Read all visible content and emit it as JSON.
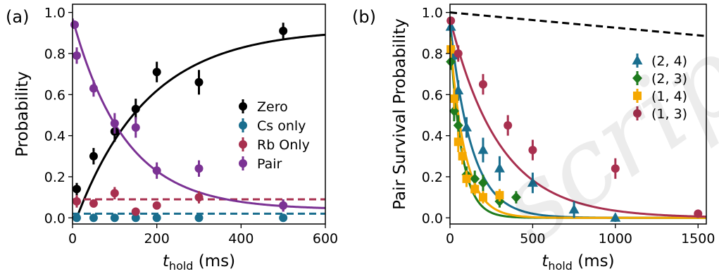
{
  "chart_data": [
    {
      "type": "scatter",
      "panel_label": "(a)",
      "xlabel_main": "t",
      "xlabel_sub": "hold",
      "xlabel_unit": " (ms)",
      "ylabel": "Probability",
      "xlim": [
        0,
        600
      ],
      "ylim": [
        -0.03,
        1.04
      ],
      "xticks": [
        0,
        200,
        400,
        600
      ],
      "yticks": [
        0.0,
        0.2,
        0.4,
        0.6,
        0.8,
        1.0
      ],
      "ytick_labels": [
        "0.0",
        "0.2",
        "0.4",
        "0.6",
        "0.8",
        "1.0"
      ],
      "legend_placement": "center-right",
      "series": [
        {
          "name": "Zero",
          "color": "#000000",
          "marker": "circle",
          "x": [
            10,
            50,
            100,
            150,
            200,
            300,
            500
          ],
          "y": [
            0.14,
            0.3,
            0.42,
            0.53,
            0.71,
            0.66,
            0.91
          ],
          "err": [
            0.03,
            0.04,
            0.05,
            0.05,
            0.05,
            0.06,
            0.04
          ],
          "fit": {
            "kind": "rise",
            "a": 0.92,
            "tau": 170,
            "x0": 10
          },
          "fit_style": "solid"
        },
        {
          "name": "Cs only",
          "color": "#1a6e8e",
          "marker": "circle",
          "x": [
            10,
            50,
            100,
            150,
            200,
            300,
            500
          ],
          "y": [
            0.0,
            0.0,
            0.0,
            0.0,
            0.0,
            0.0,
            0.0
          ],
          "err": [
            0.01,
            0.01,
            0.01,
            0.01,
            0.01,
            0.01,
            0.01
          ],
          "fit": {
            "kind": "const",
            "c": 0.02
          },
          "fit_style": "dashed"
        },
        {
          "name": "Rb Only",
          "color": "#a8304f",
          "marker": "circle",
          "x": [
            10,
            50,
            100,
            150,
            200,
            300,
            500
          ],
          "y": [
            0.08,
            0.07,
            0.12,
            0.03,
            0.06,
            0.1,
            0.06
          ],
          "err": [
            0.03,
            0.02,
            0.03,
            0.02,
            0.02,
            0.03,
            0.03
          ],
          "fit": {
            "kind": "const",
            "c": 0.09
          },
          "fit_style": "dashed"
        },
        {
          "name": "Pair",
          "color": "#7b3294",
          "marker": "circle",
          "x": [
            5,
            10,
            50,
            100,
            150,
            200,
            300,
            500
          ],
          "y": [
            0.94,
            0.79,
            0.63,
            0.46,
            0.44,
            0.23,
            0.24,
            0.06
          ],
          "err": [
            0.02,
            0.04,
            0.04,
            0.05,
            0.05,
            0.04,
            0.04,
            0.03
          ],
          "fit": {
            "kind": "decay",
            "a": 0.93,
            "b": 0.04,
            "tau": 125,
            "x0": 0
          },
          "fit_style": "solid"
        }
      ]
    },
    {
      "type": "scatter",
      "panel_label": "(b)",
      "xlabel_main": "t",
      "xlabel_sub": "hold",
      "xlabel_unit": " (ms)",
      "ylabel": "Pair Survival Probability",
      "xlim": [
        0,
        1550
      ],
      "ylim": [
        -0.03,
        1.04
      ],
      "xticks": [
        0,
        500,
        1000,
        1500
      ],
      "yticks": [
        0.0,
        0.2,
        0.4,
        0.6,
        0.8,
        1.0
      ],
      "ytick_labels": [
        "0.0",
        "0.2",
        "0.4",
        "0.6",
        "0.8",
        "1.0"
      ],
      "legend_placement": "upper-right",
      "reference_line": {
        "x": [
          0,
          1550
        ],
        "y": [
          1.0,
          0.885
        ],
        "style": "dashed",
        "color": "#000000"
      },
      "series": [
        {
          "name": "(2, 4)",
          "color": "#1a6e8e",
          "marker": "triangle",
          "x": [
            5,
            25,
            50,
            100,
            200,
            300,
            500,
            750,
            1000
          ],
          "y": [
            0.93,
            0.79,
            0.62,
            0.44,
            0.33,
            0.24,
            0.17,
            0.04,
            0.0
          ],
          "err": [
            0.03,
            0.04,
            0.05,
            0.05,
            0.06,
            0.06,
            0.05,
            0.04,
            0.02
          ],
          "fit": {
            "kind": "decay",
            "a": 0.95,
            "b": 0.0,
            "tau": 130,
            "x0": 0
          },
          "fit_style": "solid"
        },
        {
          "name": "(2, 3)",
          "color": "#1e7b1e",
          "marker": "diamond",
          "x": [
            5,
            25,
            50,
            100,
            150,
            200,
            300,
            400
          ],
          "y": [
            0.76,
            0.52,
            0.45,
            0.21,
            0.19,
            0.17,
            0.08,
            0.1
          ],
          "err": [
            0.04,
            0.05,
            0.05,
            0.04,
            0.04,
            0.04,
            0.03,
            0.03
          ],
          "fit": {
            "kind": "decay",
            "a": 0.9,
            "b": 0.0,
            "tau": 70,
            "x0": 0
          },
          "fit_style": "solid"
        },
        {
          "name": "(1, 4)",
          "color": "#f5a800",
          "marker": "square",
          "x": [
            5,
            25,
            50,
            75,
            100,
            150,
            200,
            300
          ],
          "y": [
            0.82,
            0.58,
            0.37,
            0.3,
            0.19,
            0.14,
            0.1,
            0.11
          ],
          "err": [
            0.04,
            0.05,
            0.05,
            0.04,
            0.04,
            0.03,
            0.03,
            0.03
          ],
          "fit": {
            "kind": "decay",
            "a": 0.88,
            "b": 0.0,
            "tau": 90,
            "x0": 0
          },
          "fit_style": "solid"
        },
        {
          "name": "(1, 3)",
          "color": "#a8304f",
          "marker": "circle",
          "x": [
            5,
            50,
            200,
            350,
            500,
            1000,
            1500
          ],
          "y": [
            0.96,
            0.8,
            0.65,
            0.45,
            0.33,
            0.24,
            0.02
          ],
          "err": [
            0.02,
            0.04,
            0.05,
            0.05,
            0.05,
            0.05,
            0.02
          ],
          "fit": {
            "kind": "decay",
            "a": 0.97,
            "b": 0.0,
            "tau": 300,
            "x0": 0
          },
          "fit_style": "solid"
        }
      ]
    }
  ],
  "watermark": "script"
}
